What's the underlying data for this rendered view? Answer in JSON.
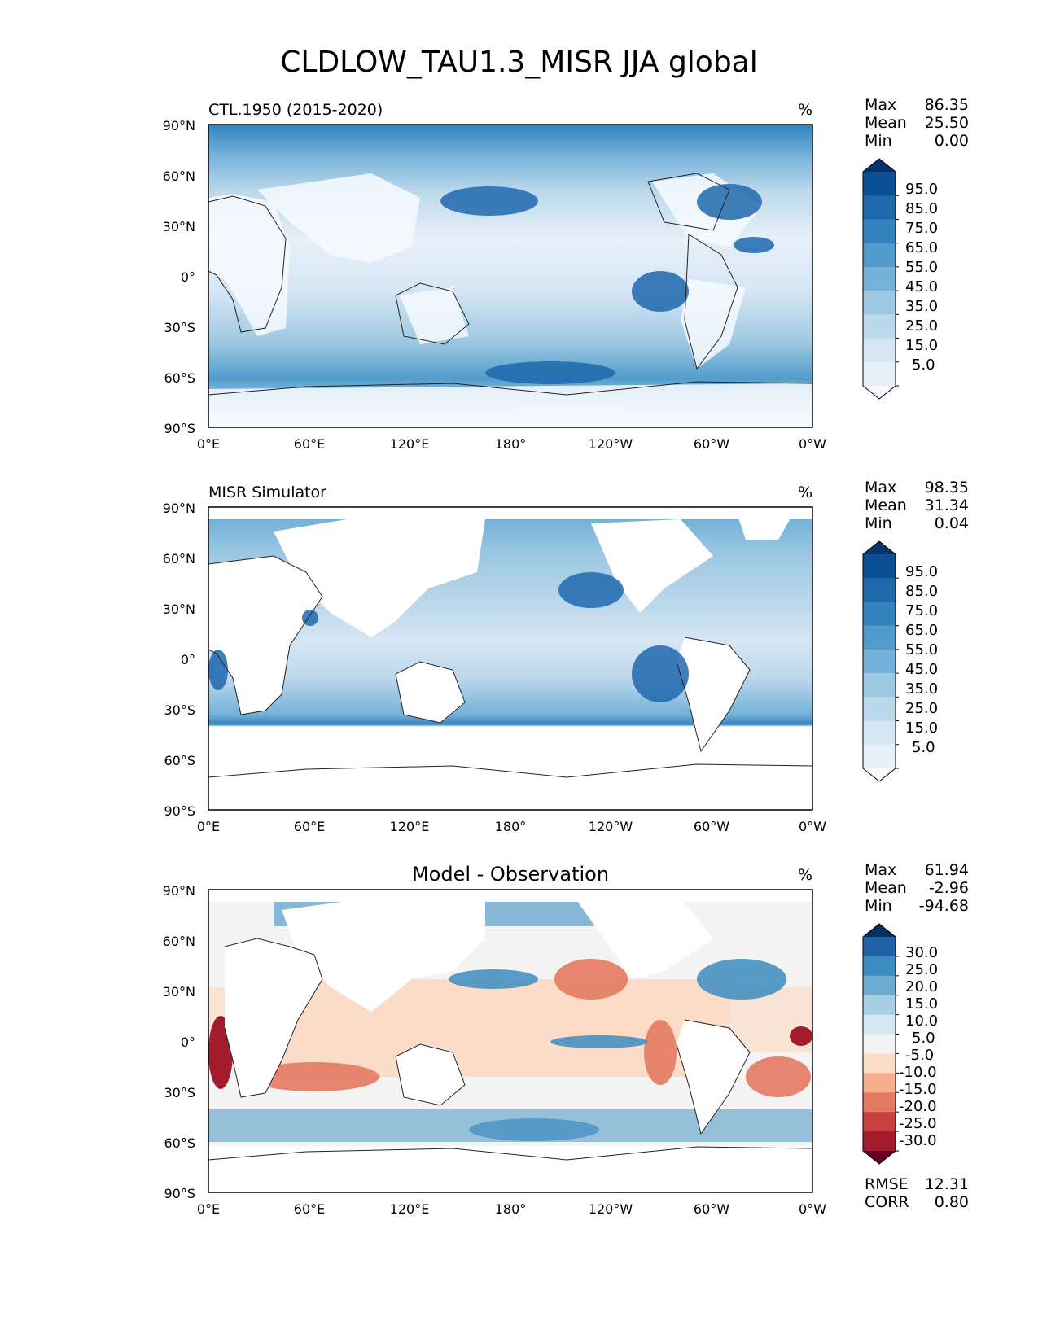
{
  "title": "CLDLOW_TAU1.3_MISR JJA global",
  "axes": {
    "yticks": [
      "90°N",
      "60°N",
      "30°N",
      "0°",
      "30°S",
      "60°S",
      "90°S"
    ],
    "xticks": [
      "0°E",
      "60°E",
      "120°E",
      "180°",
      "120°W",
      "60°W",
      "0°W"
    ]
  },
  "panels": [
    {
      "left_title": "CTL.1950 (2015-2020)",
      "center_title": "",
      "units": "%",
      "stats": [
        {
          "label": "Max",
          "value": "86.35"
        },
        {
          "label": "Mean",
          "value": "25.50"
        },
        {
          "label": "Min",
          "value": "0.00"
        }
      ],
      "colorbar_labels": [
        "95.0",
        "85.0",
        "75.0",
        "65.0",
        "55.0",
        "45.0",
        "35.0",
        "25.0",
        "15.0",
        "5.0"
      ],
      "colorbar_colors": [
        "#08306b",
        "#0b4f94",
        "#1e68ad",
        "#3383be",
        "#519ccc",
        "#74b1d9",
        "#9dc8e2",
        "#bcd8ec",
        "#d6e6f4",
        "#e7f0f9",
        "#f7fbff"
      ]
    },
    {
      "left_title": "MISR Simulator",
      "center_title": "",
      "units": "%",
      "stats": [
        {
          "label": "Max",
          "value": "98.35"
        },
        {
          "label": "Mean",
          "value": "31.34"
        },
        {
          "label": "Min",
          "value": "0.04"
        }
      ],
      "colorbar_labels": [
        "95.0",
        "85.0",
        "75.0",
        "65.0",
        "55.0",
        "45.0",
        "35.0",
        "25.0",
        "15.0",
        "5.0"
      ],
      "colorbar_colors": [
        "#08306b",
        "#0b4f94",
        "#1e68ad",
        "#3383be",
        "#519ccc",
        "#74b1d9",
        "#9dc8e2",
        "#bcd8ec",
        "#d6e6f4",
        "#e7f0f9",
        "#f7fbff"
      ]
    },
    {
      "left_title": "",
      "center_title": "Model - Observation",
      "units": "%",
      "stats": [
        {
          "label": "Max",
          "value": "61.94"
        },
        {
          "label": "Mean",
          "value": "-2.96"
        },
        {
          "label": "Min",
          "value": "-94.68"
        }
      ],
      "colorbar_labels": [
        "30.0",
        "25.0",
        "20.0",
        "15.0",
        "10.0",
        "5.0",
        "-5.0",
        "-10.0",
        "-15.0",
        "-20.0",
        "-25.0",
        "-30.0"
      ],
      "colorbar_colors": [
        "#053061",
        "#1f62a6",
        "#3a8cc0",
        "#6eabd0",
        "#a7cfe4",
        "#d5e7f1",
        "#f4f4f4",
        "#fbdcc8",
        "#f5af8f",
        "#e47a62",
        "#c8413f",
        "#a51b2e",
        "#67001f"
      ],
      "footer_stats": [
        {
          "label": "RMSE",
          "value": "12.31"
        },
        {
          "label": "CORR",
          "value": "0.80"
        }
      ]
    }
  ]
}
